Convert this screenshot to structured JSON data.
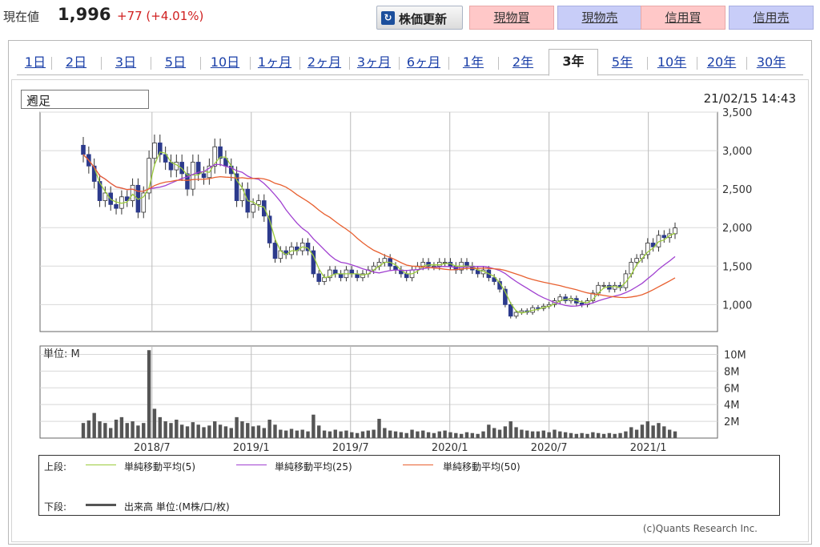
{
  "quote": {
    "label": "現在値",
    "price": "1,996",
    "change": "+77 (+4.01%)"
  },
  "toolbar": {
    "update": "株価更新",
    "spot_buy": "現物買",
    "spot_sell": "現物売",
    "margin_buy": "信用買",
    "margin_sell": "信用売"
  },
  "tabs": [
    "1日",
    "2日",
    "3日",
    "5日",
    "10日",
    "1ヶ月",
    "2ヶ月",
    "3ヶ月",
    "6ヶ月",
    "1年",
    "2年",
    "3年",
    "5年",
    "10年",
    "20年",
    "30年"
  ],
  "active_tab": "3年",
  "period_select": "週足",
  "timestamp": "21/02/15 14:43",
  "volume_unit": "単位: M",
  "legend": {
    "upper_label": "上段:",
    "lower_label": "下段:",
    "ma5": "単純移動平均(5)",
    "ma25": "単純移動平均(25)",
    "ma50": "単純移動平均(50)",
    "volume": "出来高 単位:(M株/口/枚)"
  },
  "credit": "(c)Quants Research Inc.",
  "colors": {
    "up": "#ffffff",
    "down": "#2c3a8c",
    "ma5": "#9ccc3c",
    "ma25": "#a040d0",
    "ma50": "#e86030",
    "volume": "#555555"
  },
  "chart_data": {
    "type": "candlestick",
    "x_ticks": [
      "2018/7",
      "2019/1",
      "2019/7",
      "2020/1",
      "2020/7",
      "2021/1"
    ],
    "price_axis": {
      "ticks": [
        "3,500",
        "3,000",
        "2,500",
        "2,000",
        "1,500",
        "1,000"
      ],
      "range": [
        650,
        3500
      ]
    },
    "volume_axis": {
      "ticks": [
        "10M",
        "8M",
        "6M",
        "4M",
        "2M"
      ],
      "range": [
        0,
        11
      ]
    },
    "close": [
      2950,
      2800,
      2600,
      2350,
      2450,
      2300,
      2250,
      2400,
      2350,
      2550,
      2200,
      2450,
      2900,
      3100,
      2950,
      2850,
      2750,
      2850,
      2700,
      2500,
      2850,
      2700,
      2650,
      2800,
      3050,
      2900,
      2800,
      2700,
      2350,
      2500,
      2200,
      2300,
      2350,
      2150,
      1800,
      1600,
      1700,
      1650,
      1750,
      1700,
      1800,
      1700,
      1400,
      1300,
      1350,
      1450,
      1400,
      1350,
      1450,
      1400,
      1350,
      1400,
      1450,
      1500,
      1550,
      1600,
      1500,
      1450,
      1400,
      1350,
      1450,
      1500,
      1550,
      1500,
      1500,
      1550,
      1550,
      1500,
      1450,
      1550,
      1500,
      1450,
      1400,
      1450,
      1350,
      1300,
      1200,
      1000,
      850,
      900,
      920,
      900,
      960,
      950,
      980,
      1000,
      1050,
      1100,
      1050,
      1080,
      1020,
      1000,
      1050,
      1150,
      1250,
      1250,
      1200,
      1250,
      1220,
      1400,
      1550,
      1600,
      1650,
      1800,
      1750,
      1900,
      1870,
      1920,
      1996
    ],
    "volume": [
      1.8,
      2.1,
      3.0,
      2.0,
      1.8,
      1.2,
      2.2,
      2.5,
      1.8,
      2.0,
      1.5,
      1.8,
      10.5,
      3.5,
      2.5,
      2.0,
      1.8,
      2.2,
      1.6,
      1.4,
      1.9,
      1.6,
      1.3,
      1.5,
      2.0,
      1.6,
      1.4,
      1.2,
      2.5,
      2.0,
      1.8,
      1.4,
      1.5,
      1.2,
      2.2,
      1.6,
      1.0,
      0.9,
      1.1,
      0.9,
      1.0,
      0.8,
      2.8,
      1.5,
      0.9,
      0.8,
      1.0,
      0.8,
      0.9,
      0.7,
      0.6,
      0.8,
      0.9,
      1.0,
      2.3,
      1.2,
      0.9,
      0.8,
      0.7,
      0.6,
      1.0,
      0.8,
      0.9,
      0.7,
      0.6,
      0.8,
      0.9,
      0.7,
      0.6,
      0.5,
      0.7,
      0.6,
      0.5,
      0.8,
      1.6,
      1.2,
      1.0,
      1.4,
      2.0,
      1.3,
      1.0,
      0.9,
      0.8,
      0.8,
      0.9,
      0.7,
      1.0,
      0.8,
      0.7,
      0.6,
      0.5,
      0.6,
      0.5,
      0.7,
      0.6,
      0.5,
      0.6,
      0.5,
      0.6,
      0.8,
      1.3,
      1.0,
      1.6,
      2.0,
      1.5,
      1.8,
      1.4,
      1.0,
      0.8
    ]
  }
}
